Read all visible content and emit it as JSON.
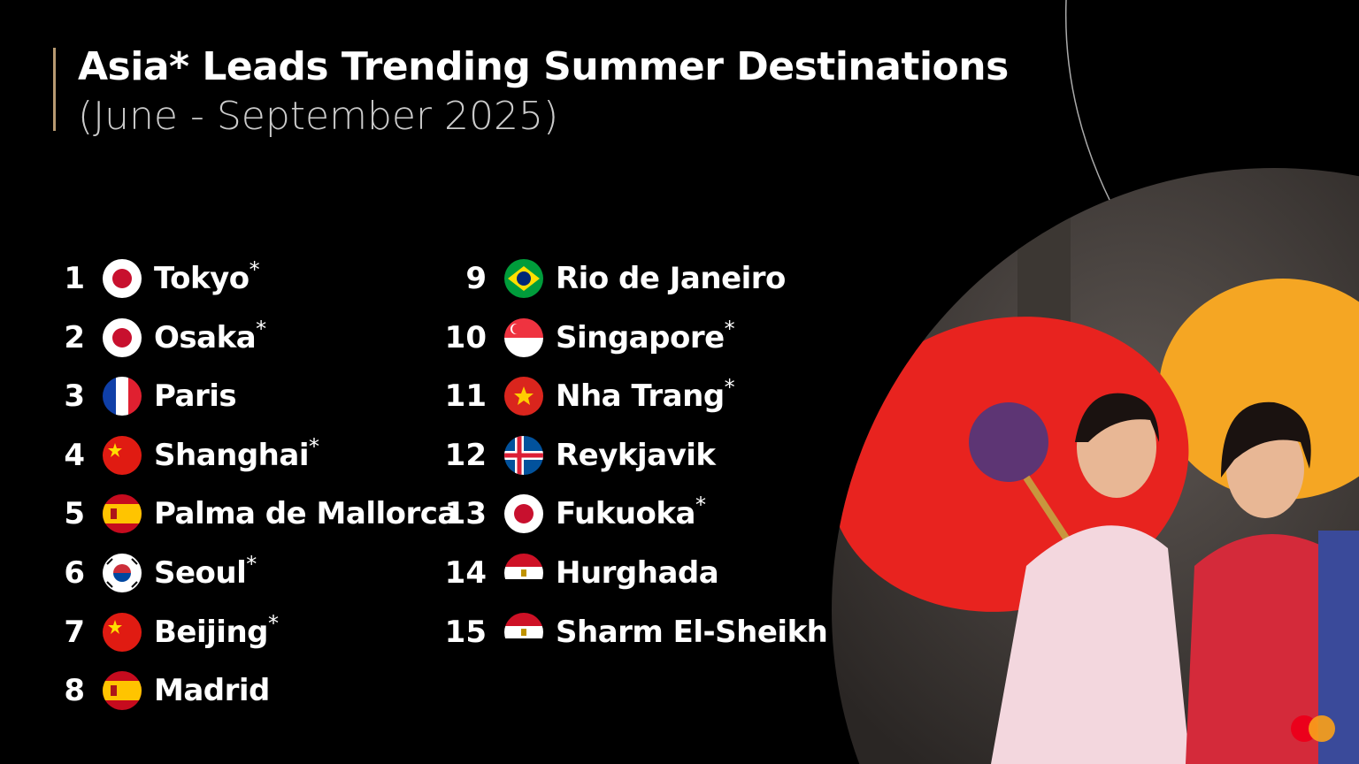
{
  "header": {
    "title": "Asia* Leads Trending Summer Destinations",
    "subtitle": "(June - September 2025)"
  },
  "destinations": [
    {
      "rank": "1",
      "name": "Tokyo",
      "marker": "*",
      "flag": "japan"
    },
    {
      "rank": "2",
      "name": "Osaka",
      "marker": "*",
      "flag": "japan"
    },
    {
      "rank": "3",
      "name": "Paris",
      "marker": "",
      "flag": "france"
    },
    {
      "rank": "4",
      "name": "Shanghai",
      "marker": "*",
      "flag": "china"
    },
    {
      "rank": "5",
      "name": "Palma de Mallorca",
      "marker": "",
      "flag": "spain"
    },
    {
      "rank": "6",
      "name": "Seoul",
      "marker": "*",
      "flag": "south-korea"
    },
    {
      "rank": "7",
      "name": "Beijing",
      "marker": "*",
      "flag": "china"
    },
    {
      "rank": "8",
      "name": "Madrid",
      "marker": "",
      "flag": "spain"
    },
    {
      "rank": "9",
      "name": "Rio de Janeiro",
      "marker": "",
      "flag": "brazil"
    },
    {
      "rank": "10",
      "name": "Singapore",
      "marker": "*",
      "flag": "singapore"
    },
    {
      "rank": "11",
      "name": "Nha Trang",
      "marker": "*",
      "flag": "vietnam"
    },
    {
      "rank": "12",
      "name": "Reykjavik",
      "marker": "",
      "flag": "iceland"
    },
    {
      "rank": "13",
      "name": "Fukuoka",
      "marker": "*",
      "flag": "japan"
    },
    {
      "rank": "14",
      "name": "Hurghada",
      "marker": "",
      "flag": "egypt"
    },
    {
      "rank": "15",
      "name": "Sharm El-Sheikh",
      "marker": "",
      "flag": "egypt"
    }
  ],
  "colors": {
    "background": "#000000",
    "accent": "#b89a72",
    "logo_red": "#eb001b",
    "logo_orange": "#f79e1b"
  },
  "logo": {
    "icon": "mastercard-logo"
  }
}
